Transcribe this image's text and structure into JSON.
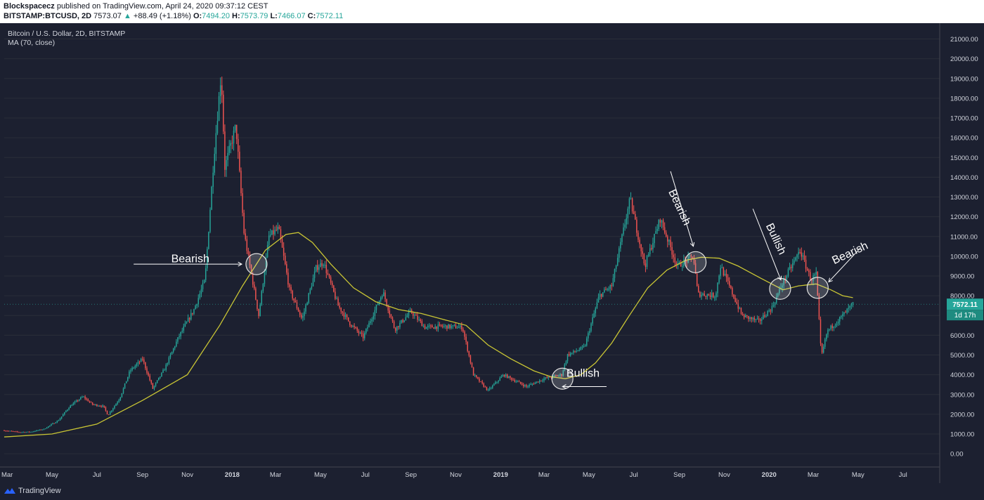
{
  "header": {
    "author": "Blockspacecz",
    "published": " published on TradingView.com, April 24, 2020 09:37:12 CEST",
    "symbol": "BITSTAMP:BTCUSD, 2D",
    "last": "7573.07",
    "change_arrow": "▲",
    "change": "+88.49 (+1.18%)",
    "o_label": "O:",
    "o": "7494.20",
    "h_label": "H:",
    "h": "7573.79",
    "l_label": "L:",
    "l": "7466.07",
    "c_label": "C:",
    "c": "7572.11"
  },
  "legend": {
    "title": "Bitcoin / U.S. Dollar, 2D, BITSTAMP",
    "indicator": "MA (70, close)"
  },
  "footer": {
    "brand": "TradingView",
    "logo_icon": "tradingview-logo-icon"
  },
  "colors": {
    "background": "#1c2030",
    "up": "#26a69a",
    "down": "#ef5350",
    "ma": "#c9c534",
    "annotation": "#ffffff",
    "grid": "#2a2e39",
    "axis_text": "#d1d4dc"
  },
  "chart_data": {
    "type": "candlestick",
    "title": "Bitcoin / U.S. Dollar, 2D, BITSTAMP",
    "ylim": [
      -600,
      21800
    ],
    "xlim": [
      "2017-02-25",
      "2020-08-20"
    ],
    "y_ticks": [
      "0.00",
      "1000.00",
      "2000.00",
      "3000.00",
      "4000.00",
      "5000.00",
      "6000.00",
      "7000.00",
      "8000.00",
      "9000.00",
      "10000.00",
      "11000.00",
      "12000.00",
      "13000.00",
      "14000.00",
      "15000.00",
      "16000.00",
      "17000.00",
      "18000.00",
      "19000.00",
      "20000.00",
      "21000.00"
    ],
    "x_ticks": [
      {
        "label": "Mar",
        "date": "2017-03-01",
        "bold": false
      },
      {
        "label": "May",
        "date": "2017-05-01",
        "bold": false
      },
      {
        "label": "Jul",
        "date": "2017-07-01",
        "bold": false
      },
      {
        "label": "Sep",
        "date": "2017-09-01",
        "bold": false
      },
      {
        "label": "Nov",
        "date": "2017-11-01",
        "bold": false
      },
      {
        "label": "2018",
        "date": "2018-01-01",
        "bold": true
      },
      {
        "label": "Mar",
        "date": "2018-03-01",
        "bold": false
      },
      {
        "label": "May",
        "date": "2018-05-01",
        "bold": false
      },
      {
        "label": "Jul",
        "date": "2018-07-01",
        "bold": false
      },
      {
        "label": "Sep",
        "date": "2018-09-01",
        "bold": false
      },
      {
        "label": "Nov",
        "date": "2018-11-01",
        "bold": false
      },
      {
        "label": "2019",
        "date": "2019-01-01",
        "bold": true
      },
      {
        "label": "Mar",
        "date": "2019-03-01",
        "bold": false
      },
      {
        "label": "May",
        "date": "2019-05-01",
        "bold": false
      },
      {
        "label": "Jul",
        "date": "2019-07-01",
        "bold": false
      },
      {
        "label": "Sep",
        "date": "2019-09-01",
        "bold": false
      },
      {
        "label": "Nov",
        "date": "2019-11-01",
        "bold": false
      },
      {
        "label": "2020",
        "date": "2020-01-01",
        "bold": true
      },
      {
        "label": "Mar",
        "date": "2020-03-01",
        "bold": false
      },
      {
        "label": "May",
        "date": "2020-05-01",
        "bold": false
      },
      {
        "label": "Jul",
        "date": "2020-07-01",
        "bold": false
      }
    ],
    "price_path": [
      [
        "2017-02-25",
        1180
      ],
      [
        "2017-03-15",
        1100
      ],
      [
        "2017-04-01",
        1100
      ],
      [
        "2017-04-20",
        1250
      ],
      [
        "2017-05-10",
        1700
      ],
      [
        "2017-05-25",
        2400
      ],
      [
        "2017-06-12",
        2900
      ],
      [
        "2017-06-25",
        2500
      ],
      [
        "2017-07-10",
        2400
      ],
      [
        "2017-07-16",
        1950
      ],
      [
        "2017-08-01",
        2800
      ],
      [
        "2017-08-15",
        4200
      ],
      [
        "2017-09-01",
        4800
      ],
      [
        "2017-09-15",
        3300
      ],
      [
        "2017-10-01",
        4300
      ],
      [
        "2017-10-20",
        5900
      ],
      [
        "2017-11-10",
        7300
      ],
      [
        "2017-11-25",
        8800
      ],
      [
        "2017-12-07",
        15000
      ],
      [
        "2017-12-17",
        19300
      ],
      [
        "2017-12-22",
        14500
      ],
      [
        "2018-01-06",
        16600
      ],
      [
        "2018-01-17",
        11200
      ],
      [
        "2018-02-06",
        7000
      ],
      [
        "2018-02-20",
        11000
      ],
      [
        "2018-03-05",
        11400
      ],
      [
        "2018-03-20",
        8300
      ],
      [
        "2018-04-06",
        6800
      ],
      [
        "2018-04-25",
        9400
      ],
      [
        "2018-05-05",
        9700
      ],
      [
        "2018-05-25",
        7500
      ],
      [
        "2018-06-10",
        6600
      ],
      [
        "2018-06-28",
        5900
      ],
      [
        "2018-07-25",
        8200
      ],
      [
        "2018-08-10",
        6300
      ],
      [
        "2018-09-01",
        7200
      ],
      [
        "2018-09-20",
        6400
      ],
      [
        "2018-10-15",
        6450
      ],
      [
        "2018-11-10",
        6400
      ],
      [
        "2018-11-25",
        4000
      ],
      [
        "2018-12-15",
        3200
      ],
      [
        "2019-01-05",
        4000
      ],
      [
        "2019-02-05",
        3400
      ],
      [
        "2019-03-01",
        3800
      ],
      [
        "2019-03-25",
        4000
      ],
      [
        "2019-04-02",
        5000
      ],
      [
        "2019-04-25",
        5400
      ],
      [
        "2019-05-15",
        8000
      ],
      [
        "2019-06-01",
        8500
      ],
      [
        "2019-06-26",
        12900
      ],
      [
        "2019-07-16",
        9500
      ],
      [
        "2019-08-06",
        11900
      ],
      [
        "2019-08-29",
        9500
      ],
      [
        "2019-09-20",
        10000
      ],
      [
        "2019-09-26",
        8100
      ],
      [
        "2019-10-20",
        8000
      ],
      [
        "2019-10-27",
        9500
      ],
      [
        "2019-11-25",
        7000
      ],
      [
        "2019-12-18",
        6700
      ],
      [
        "2020-01-05",
        7400
      ],
      [
        "2020-01-20",
        8700
      ],
      [
        "2020-02-12",
        10300
      ],
      [
        "2020-02-27",
        8800
      ],
      [
        "2020-03-05",
        9100
      ],
      [
        "2020-03-12",
        4900
      ],
      [
        "2020-03-20",
        6200
      ],
      [
        "2020-04-05",
        6800
      ],
      [
        "2020-04-24",
        7572
      ]
    ],
    "ma_path": [
      [
        "2017-02-25",
        850
      ],
      [
        "2017-05-01",
        1000
      ],
      [
        "2017-07-01",
        1500
      ],
      [
        "2017-09-01",
        2700
      ],
      [
        "2017-11-01",
        4000
      ],
      [
        "2017-12-15",
        6500
      ],
      [
        "2018-01-15",
        8500
      ],
      [
        "2018-02-15",
        10300
      ],
      [
        "2018-03-15",
        11100
      ],
      [
        "2018-04-01",
        11200
      ],
      [
        "2018-04-20",
        10700
      ],
      [
        "2018-05-15",
        9600
      ],
      [
        "2018-06-15",
        8400
      ],
      [
        "2018-07-15",
        7700
      ],
      [
        "2018-08-15",
        7300
      ],
      [
        "2018-09-15",
        7100
      ],
      [
        "2018-10-15",
        6800
      ],
      [
        "2018-11-15",
        6500
      ],
      [
        "2018-12-15",
        5500
      ],
      [
        "2019-01-15",
        4800
      ],
      [
        "2019-02-15",
        4200
      ],
      [
        "2019-03-10",
        3900
      ],
      [
        "2019-03-30",
        3800
      ],
      [
        "2019-04-20",
        4000
      ],
      [
        "2019-05-10",
        4600
      ],
      [
        "2019-06-01",
        5600
      ],
      [
        "2019-06-25",
        7000
      ],
      [
        "2019-07-20",
        8400
      ],
      [
        "2019-08-15",
        9300
      ],
      [
        "2019-09-10",
        9800
      ],
      [
        "2019-10-01",
        9950
      ],
      [
        "2019-10-25",
        9900
      ],
      [
        "2019-11-20",
        9500
      ],
      [
        "2019-12-20",
        8900
      ],
      [
        "2020-01-20",
        8300
      ],
      [
        "2020-02-10",
        8500
      ],
      [
        "2020-03-05",
        8600
      ],
      [
        "2020-03-25",
        8300
      ],
      [
        "2020-04-10",
        8000
      ],
      [
        "2020-04-24",
        7900
      ]
    ],
    "last_price": {
      "value": 7572.11,
      "label": "7572.11",
      "countdown": "1d 17h"
    },
    "annotations": [
      {
        "text": "Bearish",
        "date": "2017-11-05",
        "price": 9700,
        "rotate": 0
      },
      {
        "text": "Bullish",
        "date": "2019-04-23",
        "price": 3900,
        "rotate": 0
      },
      {
        "text": "Bearish",
        "date": "2019-08-28",
        "price": 12400,
        "rotate": 65
      },
      {
        "text": "Bullish",
        "date": "2020-01-06",
        "price": 10800,
        "rotate": 65
      },
      {
        "text": "Bearish",
        "date": "2020-04-22",
        "price": 10000,
        "rotate": -25
      }
    ],
    "arrows": [
      {
        "from": [
          "2017-08-20",
          9600
        ],
        "to": [
          "2018-01-14",
          9600
        ]
      },
      {
        "from": [
          "2019-05-25",
          3400
        ],
        "to": [
          "2019-03-26",
          3400
        ]
      },
      {
        "from": [
          "2019-08-20",
          14300
        ],
        "to": [
          "2019-09-20",
          10500
        ]
      },
      {
        "from": [
          "2019-12-10",
          12400
        ],
        "to": [
          "2020-01-17",
          8800
        ]
      },
      {
        "from": [
          "2020-05-05",
          10450
        ],
        "to": [
          "2020-03-22",
          8700
        ]
      }
    ],
    "circles": [
      {
        "date": "2018-02-03",
        "price": 9600
      },
      {
        "date": "2019-03-26",
        "price": 3800
      },
      {
        "date": "2019-09-23",
        "price": 9700
      },
      {
        "date": "2020-01-16",
        "price": 8350
      },
      {
        "date": "2020-03-07",
        "price": 8400
      }
    ]
  }
}
